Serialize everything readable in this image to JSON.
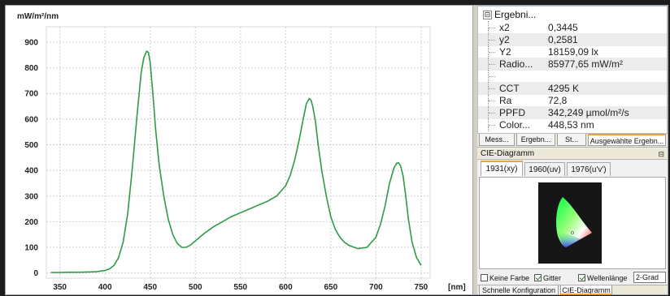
{
  "chart_data": {
    "type": "line",
    "ylabel": "mW/m²/nm",
    "xlabel": "[nm]",
    "xlim": [
      335,
      760
    ],
    "ylim": [
      -20,
      960
    ],
    "x_ticks": [
      350,
      400,
      450,
      500,
      550,
      600,
      650,
      700,
      750
    ],
    "y_ticks": [
      0,
      100,
      200,
      300,
      400,
      500,
      600,
      700,
      800,
      900
    ],
    "grid": true,
    "line_color": "#2e9b46",
    "series": [
      {
        "x": [
          340,
          350,
          360,
          370,
          380,
          390,
          400,
          405,
          410,
          415,
          420,
          425,
          430,
          435,
          440,
          443,
          446,
          448,
          450,
          453,
          456,
          460,
          465,
          470,
          475,
          480,
          485,
          490,
          495,
          500,
          510,
          520,
          530,
          540,
          550,
          560,
          570,
          580,
          590,
          600,
          605,
          610,
          615,
          620,
          623,
          626,
          628,
          630,
          633,
          636,
          640,
          645,
          650,
          655,
          660,
          665,
          670,
          680,
          690,
          700,
          705,
          710,
          715,
          720,
          723,
          725,
          727,
          730,
          733,
          736,
          740,
          745,
          750
        ],
        "values": [
          2,
          2,
          3,
          3,
          4,
          5,
          10,
          16,
          30,
          60,
          120,
          230,
          400,
          600,
          780,
          840,
          865,
          860,
          820,
          700,
          560,
          420,
          300,
          210,
          150,
          115,
          100,
          100,
          110,
          125,
          155,
          180,
          200,
          220,
          235,
          250,
          265,
          280,
          300,
          340,
          380,
          440,
          520,
          610,
          660,
          680,
          675,
          650,
          590,
          500,
          400,
          300,
          220,
          170,
          140,
          120,
          108,
          95,
          100,
          140,
          190,
          260,
          350,
          410,
          428,
          430,
          420,
          380,
          300,
          210,
          120,
          60,
          30
        ]
      }
    ]
  },
  "results": {
    "header": "Ergebni...",
    "expander": "⊟",
    "rows": [
      {
        "key": "x2",
        "value": "0,3445"
      },
      {
        "key": "y2",
        "value": "0,2581"
      },
      {
        "key": "Y2",
        "value": "18159,09 lx"
      },
      {
        "key": "Radio...",
        "value": "85977,65 mW/m²"
      },
      {
        "key": "",
        "value": ""
      },
      {
        "key": "CCT",
        "value": "4295 K"
      },
      {
        "key": "Ra",
        "value": "72,8"
      },
      {
        "key": "PPFD",
        "value": "342,249 µmol/m²/s"
      },
      {
        "key": "Color...",
        "value": "448,53 nm"
      }
    ]
  },
  "tabs": [
    "Mess...",
    "Ergebn...",
    "St...",
    "Ausgewählte Ergebn..."
  ],
  "cie": {
    "title": "CIE-Diagramm",
    "pin": "⊟",
    "subtabs": [
      "1931(xy)",
      "1960(uv)",
      "1976(u'v')"
    ]
  },
  "options": {
    "keine_farbe": "Keine Farbe",
    "gitter": "Gitter",
    "wellenlaenge": "Wellenlänge",
    "degree": "2-Grad"
  },
  "bottom_tabs": [
    "Schnelle Konfiguration",
    "CIE-Diagramm"
  ]
}
